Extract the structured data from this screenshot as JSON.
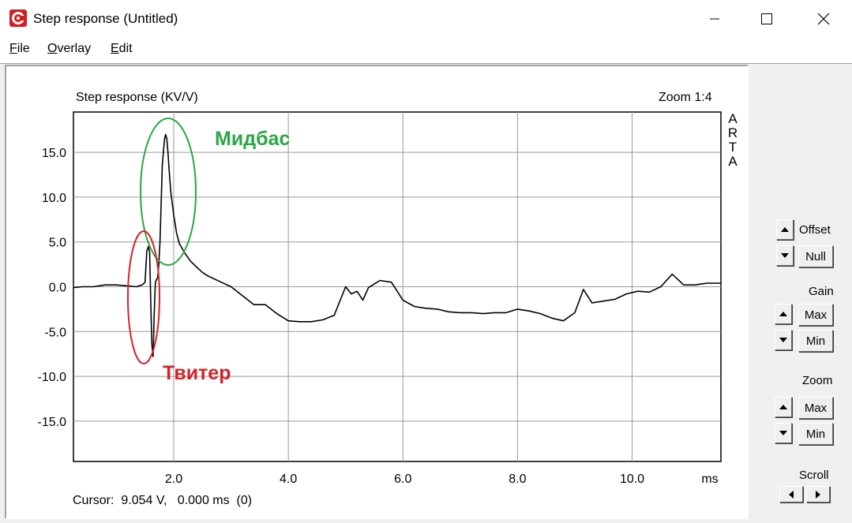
{
  "window": {
    "title": "Step response (Untitled)"
  },
  "menu": {
    "file": {
      "accel": "F",
      "rest": "ile"
    },
    "overlay": {
      "accel": "O",
      "rest": "verlay"
    },
    "edit": {
      "accel": "E",
      "rest": "dit"
    }
  },
  "plot": {
    "title": "Step response (KV/V)",
    "zoom": "Zoom 1:4",
    "brand_letters": [
      "A",
      "R",
      "T",
      "A"
    ],
    "cursor_text": "Cursor:  9.054 V,   0.000 ms  (0)"
  },
  "annotations": {
    "midbass": {
      "text": "Мидбас",
      "color": "#2aa745"
    },
    "tweeter": {
      "text": "Твитер",
      "color": "#d1232a"
    }
  },
  "controls": {
    "offset": {
      "label": "Offset",
      "null_label": "Null"
    },
    "gain": {
      "label": "Gain",
      "max_label": "Max",
      "min_label": "Min"
    },
    "zoom": {
      "label": "Zoom",
      "max_label": "Max",
      "min_label": "Min"
    },
    "scroll": {
      "label": "Scroll"
    }
  },
  "chart_data": {
    "type": "line",
    "title": "Step response (KV/V)",
    "xlabel": "ms",
    "ylabel": "",
    "xlim": [
      0.25,
      11.55
    ],
    "ylim": [
      -19.5,
      19.5
    ],
    "x_ticks": [
      2.0,
      4.0,
      6.0,
      8.0,
      10.0
    ],
    "x_tick_labels": [
      "2.0",
      "4.0",
      "6.0",
      "8.0",
      "10.0"
    ],
    "y_ticks": [
      15,
      10,
      5,
      0,
      -5,
      -10,
      -15
    ],
    "y_tick_labels": [
      "15.0",
      "10.0",
      "5.0",
      "0.0",
      "-5.0",
      "-10.0",
      "-15.0"
    ],
    "grid": true,
    "line_color": "#000000",
    "series": [
      {
        "x": [
          0.25,
          0.4,
          0.6,
          0.8,
          1.0,
          1.2,
          1.35,
          1.45,
          1.5,
          1.53,
          1.56,
          1.58,
          1.6,
          1.62,
          1.64,
          1.66,
          1.68,
          1.7,
          1.72,
          1.74,
          1.76,
          1.78,
          1.8,
          1.82,
          1.84,
          1.86,
          1.88,
          1.9,
          1.92,
          1.95,
          2.0,
          2.05,
          2.1,
          2.2,
          2.3,
          2.4,
          2.5,
          2.6,
          2.8,
          3.0,
          3.2,
          3.4,
          3.6,
          3.8,
          4.0,
          4.2,
          4.4,
          4.6,
          4.8,
          5.0,
          5.1,
          5.2,
          5.3,
          5.4,
          5.6,
          5.8,
          6.0,
          6.2,
          6.4,
          6.6,
          6.8,
          7.0,
          7.2,
          7.4,
          7.6,
          7.8,
          8.0,
          8.2,
          8.4,
          8.6,
          8.8,
          9.0,
          9.15,
          9.3,
          9.5,
          9.7,
          9.9,
          10.1,
          10.3,
          10.5,
          10.7,
          10.9,
          11.1,
          11.3,
          11.55
        ],
        "y": [
          -0.1,
          0.0,
          0.0,
          0.2,
          0.2,
          0.1,
          0.0,
          0.2,
          0.5,
          4.0,
          4.5,
          3.8,
          -2.0,
          -6.5,
          -7.8,
          -3.0,
          0.5,
          0.8,
          1.0,
          2.5,
          5.0,
          9.0,
          13.5,
          15.0,
          16.5,
          17.0,
          16.5,
          15.0,
          13.0,
          10.5,
          8.0,
          6.0,
          4.8,
          3.7,
          2.8,
          2.2,
          1.6,
          1.2,
          0.6,
          0.0,
          -1.0,
          -2.0,
          -2.0,
          -3.0,
          -3.8,
          -3.9,
          -3.9,
          -3.7,
          -3.2,
          0.0,
          -0.8,
          -0.5,
          -1.5,
          -0.1,
          0.7,
          0.5,
          -1.5,
          -2.2,
          -2.4,
          -2.5,
          -2.8,
          -2.9,
          -2.9,
          -3.0,
          -2.9,
          -2.9,
          -2.5,
          -2.7,
          -3.0,
          -3.5,
          -3.8,
          -2.9,
          -0.3,
          -1.8,
          -1.6,
          -1.4,
          -0.8,
          -0.5,
          -0.6,
          0.0,
          1.4,
          0.2,
          0.2,
          0.4,
          0.4
        ]
      }
    ]
  }
}
